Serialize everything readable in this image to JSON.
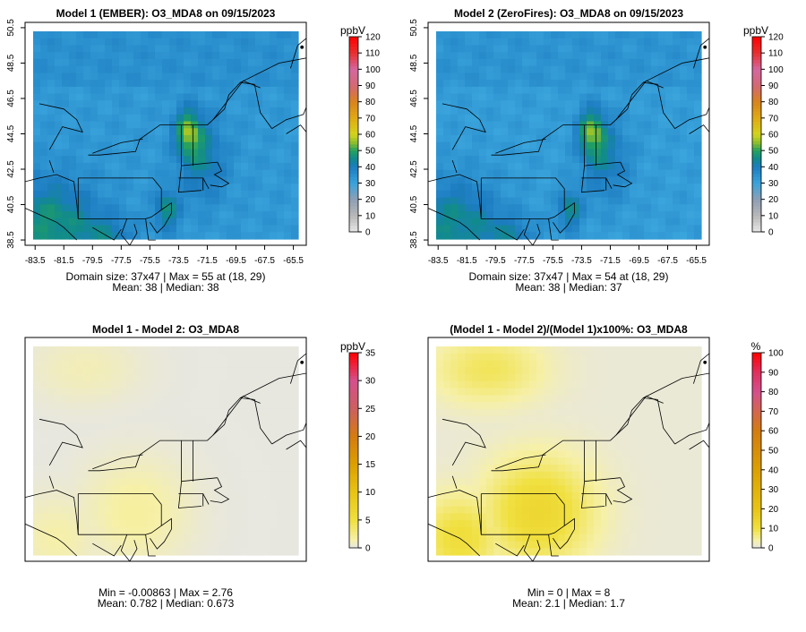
{
  "chart_data": [
    {
      "type": "heatmap",
      "title": "Model 1 (EMBER): O3_MDA8 on 09/15/2023",
      "x_ticks": [
        "-83.5",
        "-81.5",
        "-79.5",
        "-77.5",
        "-75.5",
        "-73.5",
        "-71.5",
        "-69.5",
        "-67.5",
        "-65.5"
      ],
      "y_ticks": [
        "38.5",
        "40.5",
        "42.5",
        "44.5",
        "46.5",
        "48.5",
        "50.5"
      ],
      "xlim": [
        -84.2,
        -64.6
      ],
      "ylim": [
        38.2,
        50.8
      ],
      "colorbar": {
        "unit": "ppbV",
        "ticks": [
          "0",
          "10",
          "20",
          "30",
          "40",
          "50",
          "60",
          "70",
          "80",
          "90",
          "100",
          "110",
          "120"
        ],
        "range": [
          0,
          120
        ],
        "scale": "ppb"
      },
      "field": {
        "base": 35,
        "north_bonus": 2,
        "southwest_bonus": 14,
        "plume_peak": 55,
        "plume_center": [
          -72.8,
          44.6
        ]
      },
      "stats": [
        "Domain size: 37x47 | Max = 55 at (18, 29)",
        "Mean: 38 |  Median: 38"
      ]
    },
    {
      "type": "heatmap",
      "title": "Model 2 (ZeroFires): O3_MDA8 on 09/15/2023",
      "x_ticks": [
        "-83.5",
        "-81.5",
        "-79.5",
        "-77.5",
        "-75.5",
        "-73.5",
        "-71.5",
        "-69.5",
        "-67.5",
        "-65.5"
      ],
      "y_ticks": [
        "38.5",
        "40.5",
        "42.5",
        "44.5",
        "46.5",
        "48.5",
        "50.5"
      ],
      "xlim": [
        -84.2,
        -64.6
      ],
      "ylim": [
        38.2,
        50.8
      ],
      "colorbar": {
        "unit": "ppbV",
        "ticks": [
          "0",
          "10",
          "20",
          "30",
          "40",
          "50",
          "60",
          "70",
          "80",
          "90",
          "100",
          "110",
          "120"
        ],
        "range": [
          0,
          120
        ],
        "scale": "ppb"
      },
      "field": {
        "base": 34,
        "north_bonus": 2,
        "southwest_bonus": 13,
        "plume_peak": 54,
        "plume_center": [
          -72.8,
          44.6
        ]
      },
      "stats": [
        "Domain size: 37x47 | Max = 54 at (18, 29)",
        "Mean: 38 |  Median: 37"
      ]
    },
    {
      "type": "heatmap",
      "title": "Model 1 - Model 2: O3_MDA8",
      "x_ticks": [],
      "y_ticks": [],
      "xlim": [
        -84.2,
        -64.6
      ],
      "ylim": [
        38.2,
        50.8
      ],
      "colorbar": {
        "unit": "ppbV",
        "ticks": [
          "0",
          "5",
          "10",
          "15",
          "20",
          "25",
          "30",
          "35"
        ],
        "range": [
          0,
          35
        ],
        "scale": "diff"
      },
      "field": {
        "min": -0.00863,
        "max": 2.76,
        "mean": 0.782
      },
      "stats": [
        "Min = -0.00863 | Max = 2.76",
        "Mean: 0.782 |  Median: 0.673"
      ]
    },
    {
      "type": "heatmap",
      "title": "(Model 1 - Model 2)/(Model 1)x100%: O3_MDA8",
      "x_ticks": [],
      "y_ticks": [],
      "xlim": [
        -84.2,
        -64.6
      ],
      "ylim": [
        38.2,
        50.8
      ],
      "colorbar": {
        "unit": "%",
        "ticks": [
          "0",
          "10",
          "20",
          "30",
          "40",
          "50",
          "60",
          "70",
          "80",
          "90",
          "100"
        ],
        "range": [
          0,
          100
        ],
        "scale": "pct"
      },
      "field": {
        "min": 0,
        "max": 8,
        "mean": 2.1
      },
      "stats": [
        "Min = 0 | Max = 8",
        "Mean: 2.1 |  Median: 1.7"
      ]
    }
  ]
}
